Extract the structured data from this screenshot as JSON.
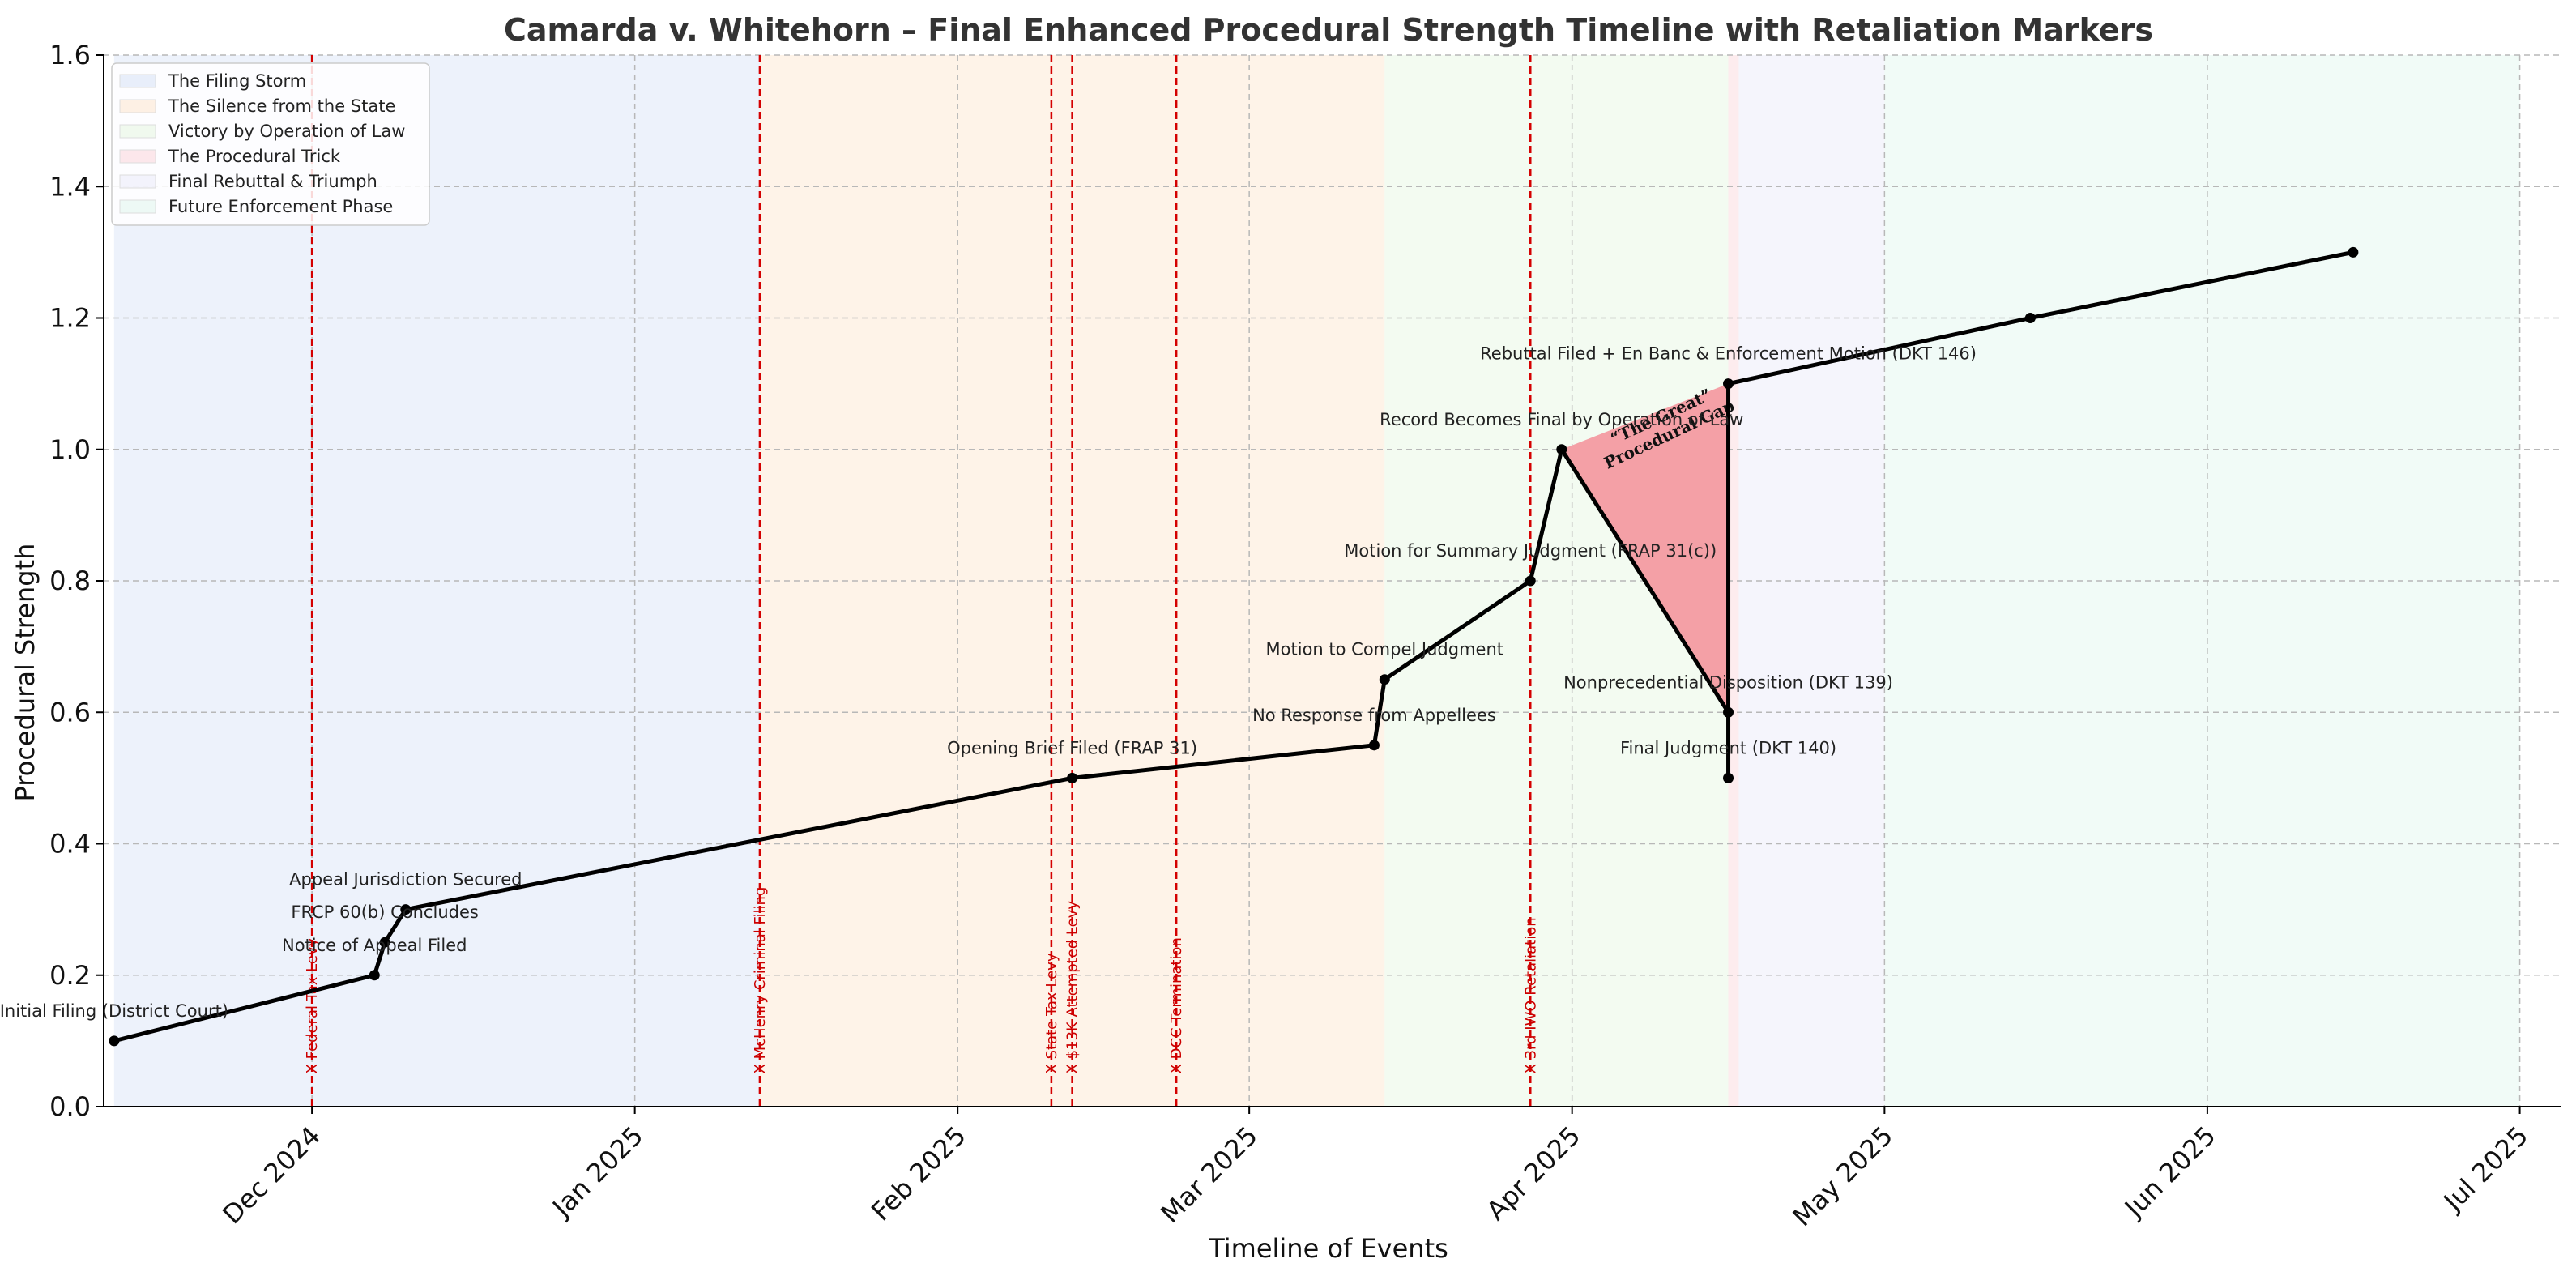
{
  "chart_data": {
    "type": "line",
    "title": "Camarda v. Whitehorn – Final Enhanced Procedural Strength Timeline with Retaliation Markers",
    "xlabel": "Timeline of Events",
    "ylabel": "Procedural Strength",
    "ylim": [
      0,
      1.6
    ],
    "xlim": [
      "2024-11-11",
      "2025-07-05"
    ],
    "grid": true,
    "legend_position": "top-left",
    "y_ticks": [
      "0.0",
      "0.2",
      "0.4",
      "0.6",
      "0.8",
      "1.0",
      "1.2",
      "1.4",
      "1.6"
    ],
    "x_ticks": [
      {
        "date": "2024-12-01",
        "label": "Dec 2024"
      },
      {
        "date": "2025-01-01",
        "label": "Jan 2025"
      },
      {
        "date": "2025-02-01",
        "label": "Feb 2025"
      },
      {
        "date": "2025-03-01",
        "label": "Mar 2025"
      },
      {
        "date": "2025-04-01",
        "label": "Apr 2025"
      },
      {
        "date": "2025-05-01",
        "label": "May 2025"
      },
      {
        "date": "2025-06-01",
        "label": "Jun 2025"
      },
      {
        "date": "2025-07-01",
        "label": "Jul 2025"
      }
    ],
    "phases": [
      {
        "label": "The Filing Storm",
        "start": "2024-11-12",
        "end": "2025-01-13",
        "color": "#dbe5f7"
      },
      {
        "label": "The Silence from the State",
        "start": "2025-01-13",
        "end": "2025-03-14",
        "color": "#fde8d2"
      },
      {
        "label": "Victory by Operation of Law",
        "start": "2025-03-14",
        "end": "2025-04-16",
        "color": "#e8f7e3"
      },
      {
        "label": "The Procedural Trick",
        "start": "2025-04-16",
        "end": "2025-04-17",
        "color": "#fcd9dd"
      },
      {
        "label": "Final Rebuttal & Triumph",
        "start": "2025-04-17",
        "end": "2025-05-01",
        "color": "#ececfa"
      },
      {
        "label": "Future Enforcement Phase",
        "start": "2025-05-01",
        "end": "2025-07-01",
        "color": "#e3f7ef"
      }
    ],
    "series": [
      {
        "color": "#000000",
        "points": [
          {
            "x": "2024-11-12",
            "y": 0.1,
            "label": "Initial Filing (District Court)"
          },
          {
            "x": "2024-12-07",
            "y": 0.2,
            "label": "Notice of Appeal Filed"
          },
          {
            "x": "2024-12-08",
            "y": 0.25,
            "label": "FRCP 60(b) Concludes"
          },
          {
            "x": "2024-12-10",
            "y": 0.3,
            "label": "Appeal Jurisdiction Secured"
          },
          {
            "x": "2025-02-12",
            "y": 0.5,
            "label": "Opening Brief Filed (FRAP 31)"
          },
          {
            "x": "2025-03-13",
            "y": 0.55,
            "label": "No Response from Appellees"
          },
          {
            "x": "2025-03-14",
            "y": 0.65,
            "label": "Motion to Compel Judgment"
          },
          {
            "x": "2025-03-28",
            "y": 0.8,
            "label": "Motion for Summary Judgment (FRAP 31(c))"
          },
          {
            "x": "2025-03-31",
            "y": 1.0,
            "label": "Record Becomes Final by Operation of Law"
          },
          {
            "x": "2025-04-16",
            "y": 0.6,
            "label": "Nonprecedential Disposition (DKT 139)"
          },
          {
            "x": "2025-04-16",
            "y": 0.5,
            "label": "Final Judgment (DKT 140)"
          },
          {
            "x": "2025-04-16",
            "y": 1.1,
            "label": "Rebuttal Filed + En Banc & Enforcement Motion (DKT 146)"
          },
          {
            "x": "2025-05-15",
            "y": 1.2,
            "label": ""
          },
          {
            "x": "2025-06-15",
            "y": 1.3,
            "label": ""
          }
        ]
      }
    ],
    "retaliation_markers": [
      {
        "date": "2024-12-01",
        "label": "X Federal Tax Levy"
      },
      {
        "date": "2025-01-13",
        "label": "X McHenry Criminal Filing"
      },
      {
        "date": "2025-02-10",
        "label": "X State Tax Levy"
      },
      {
        "date": "2025-02-12",
        "label": "X $13K Attempted Levy"
      },
      {
        "date": "2025-02-22",
        "label": "X DCC Termination"
      },
      {
        "date": "2025-03-28",
        "label": "X 3rd IWO Retaliation"
      }
    ],
    "gap_annotation": {
      "label_line1": "“The Great”",
      "label_line2": "Procedural Gap",
      "color": "#f4a0a6",
      "vertices": [
        {
          "x": "2025-03-31",
          "y": 1.0
        },
        {
          "x": "2025-04-16",
          "y": 1.1
        },
        {
          "x": "2025-04-16",
          "y": 0.6
        }
      ]
    }
  }
}
